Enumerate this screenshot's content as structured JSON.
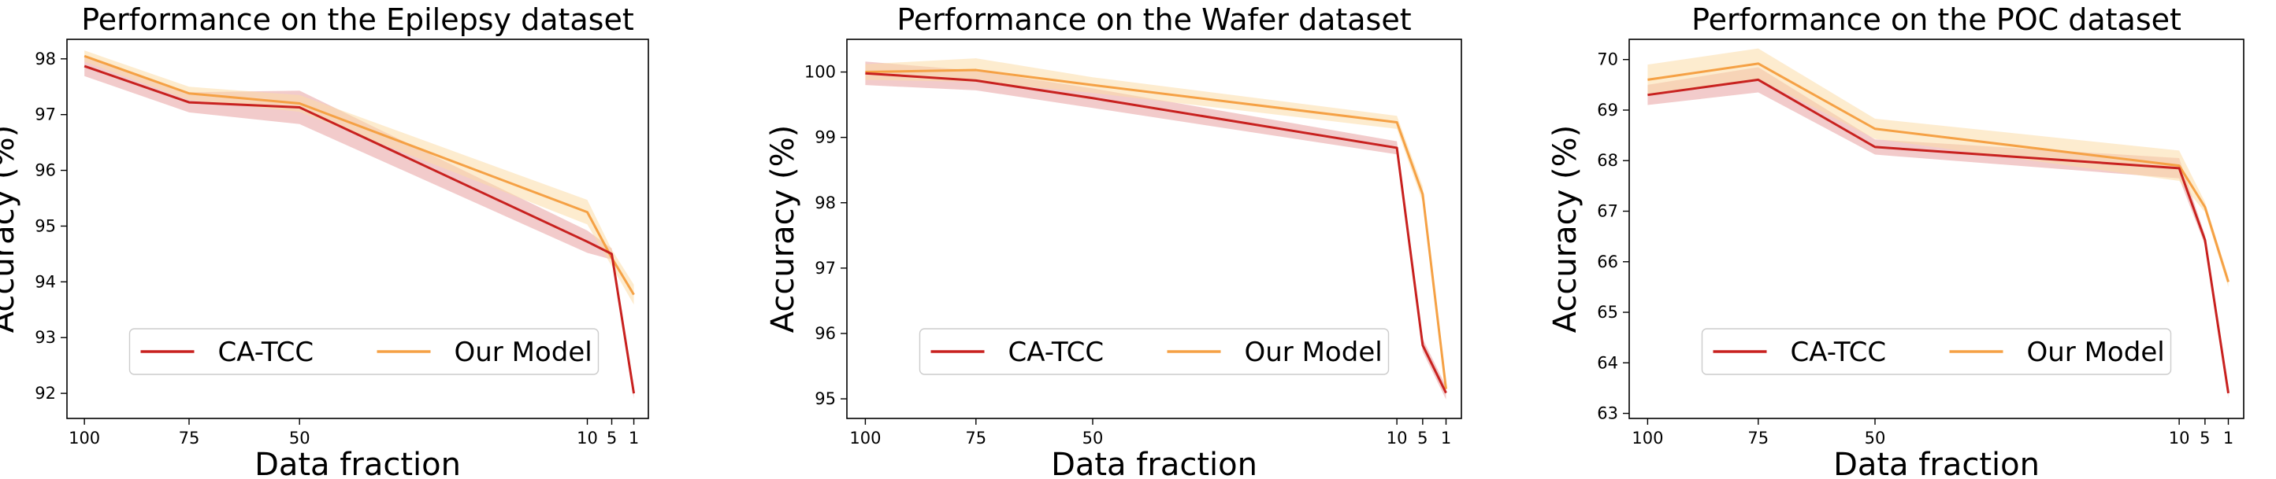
{
  "figure": {
    "background": "#ffffff"
  },
  "colors": {
    "ca_tcc": "#c8211f",
    "our_model": "#f5a145",
    "ca_tcc_band": "#e8a0a0",
    "our_model_band": "#fbdca8"
  },
  "chart_data": [
    {
      "type": "line",
      "title": "Performance on the Epilepsy dataset",
      "xlabel": "Data fraction",
      "ylabel": "Accuracy (%)",
      "x": [
        100,
        75,
        50,
        10,
        5,
        1
      ],
      "x_ticks": [
        "100",
        "75",
        "50",
        "10",
        "5",
        "1"
      ],
      "y_ticks": [
        "92",
        "93",
        "94",
        "95",
        "96",
        "97",
        "98"
      ],
      "ylim": [
        91.55,
        98.35
      ],
      "legend_position": "lower-center",
      "series": [
        {
          "name": "CA-TCC",
          "values": [
            97.87,
            97.22,
            97.13,
            94.72,
            94.5,
            92.0
          ],
          "band": [
            0.18,
            0.18,
            0.3,
            0.2,
            0.1,
            0.1
          ]
        },
        {
          "name": "Our Model",
          "values": [
            98.05,
            97.38,
            97.2,
            95.25,
            94.43,
            93.77
          ],
          "band": [
            0.1,
            0.12,
            0.15,
            0.22,
            0.15,
            0.18
          ]
        }
      ]
    },
    {
      "type": "line",
      "title": "Performance on the Wafer dataset",
      "xlabel": "Data fraction",
      "ylabel": "Accuracy (%)",
      "x": [
        100,
        75,
        50,
        10,
        5,
        1
      ],
      "x_ticks": [
        "100",
        "75",
        "50",
        "10",
        "5",
        "1"
      ],
      "y_ticks": [
        "95",
        "96",
        "97",
        "98",
        "99",
        "100"
      ],
      "ylim": [
        94.7,
        100.5
      ],
      "legend_position": "lower-center",
      "series": [
        {
          "name": "CA-TCC",
          "values": [
            99.98,
            99.87,
            99.6,
            98.84,
            95.82,
            95.09
          ],
          "band": [
            0.18,
            0.15,
            0.15,
            0.1,
            0.1,
            0.1
          ]
        },
        {
          "name": "Our Model",
          "values": [
            100.0,
            100.03,
            99.8,
            99.23,
            98.13,
            95.15
          ],
          "band": [
            0.12,
            0.18,
            0.12,
            0.1,
            0.12,
            0.1
          ]
        }
      ]
    },
    {
      "type": "line",
      "title": "Performance on the POC dataset",
      "xlabel": "Data fraction",
      "ylabel": "Accuracy (%)",
      "x": [
        100,
        75,
        50,
        10,
        5,
        1
      ],
      "x_ticks": [
        "100",
        "75",
        "50",
        "10",
        "5",
        "1"
      ],
      "y_ticks": [
        "63",
        "64",
        "65",
        "66",
        "67",
        "68",
        "69",
        "70"
      ],
      "ylim": [
        62.9,
        70.4
      ],
      "legend_position": "lower-center",
      "series": [
        {
          "name": "CA-TCC",
          "values": [
            69.3,
            69.6,
            68.27,
            67.85,
            66.43,
            63.4
          ],
          "band": [
            0.2,
            0.25,
            0.15,
            0.2,
            0.1,
            0.1
          ]
        },
        {
          "name": "Our Model",
          "values": [
            69.6,
            69.92,
            68.63,
            67.9,
            67.08,
            65.6
          ],
          "band": [
            0.3,
            0.3,
            0.2,
            0.3,
            0.1,
            0.1
          ]
        }
      ]
    }
  ]
}
